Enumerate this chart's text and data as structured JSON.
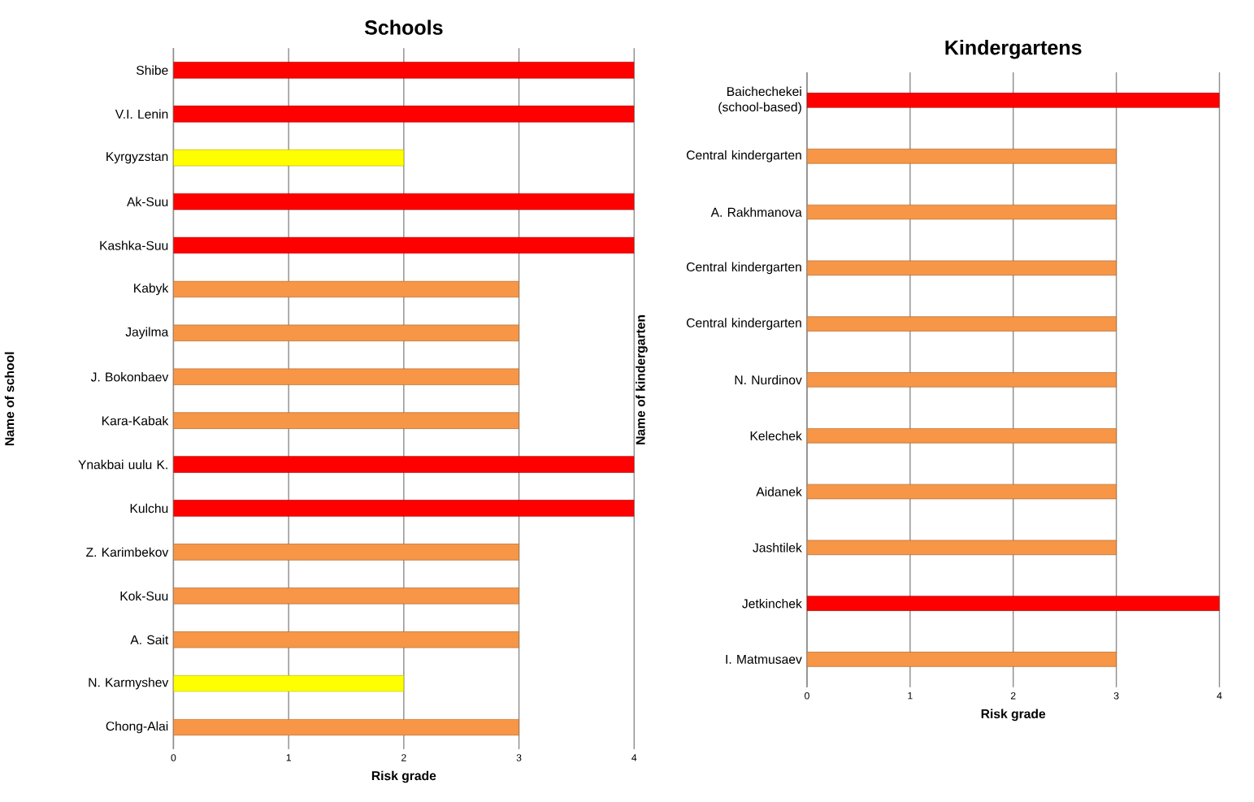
{
  "chart_data": [
    {
      "type": "bar",
      "orientation": "horizontal",
      "title": "Schools",
      "xlabel": "Risk grade",
      "ylabel": "Name of school",
      "categories": [
        "Shibe",
        "V.I. Lenin",
        "Kyrgyzstan",
        "Ak-Suu",
        "Kashka-Suu",
        "Kabyk",
        "Jayilma",
        "J. Bokonbaev",
        "Kara-Kabak",
        "Ynakbai uulu K.",
        "Kulchu",
        "Z. Karimbekov",
        "Kok-Suu",
        "A. Sait",
        "N. Karmyshev",
        "Chong-Alai"
      ],
      "values": [
        4,
        4,
        2,
        4,
        4,
        3,
        3,
        3,
        3,
        4,
        4,
        3,
        3,
        3,
        2,
        3
      ],
      "colors": [
        "#ff0000",
        "#ff0000",
        "#ffff00",
        "#ff0000",
        "#ff0000",
        "#f79646",
        "#f79646",
        "#f79646",
        "#f79646",
        "#ff0000",
        "#ff0000",
        "#f79646",
        "#f79646",
        "#f79646",
        "#ffff00",
        "#f79646"
      ],
      "xlim": [
        0,
        4
      ],
      "xticks": [
        0,
        1,
        2,
        3,
        4
      ],
      "grid": "x"
    },
    {
      "type": "bar",
      "orientation": "horizontal",
      "title": "Kindergartens",
      "xlabel": "Risk grade",
      "ylabel": "Name of kindergarten",
      "categories": [
        "Baichechekei (school-based)",
        "Central kindergarten",
        "A. Rakhmanova",
        "Central kindergarten",
        "Central kindergarten",
        "N. Nurdinov",
        "Kelechek",
        "Aidanek",
        "Jashtilek",
        "Jetkinchek",
        "I. Matmusaev"
      ],
      "values": [
        4,
        3,
        3,
        3,
        3,
        3,
        3,
        3,
        3,
        4,
        3
      ],
      "colors": [
        "#ff0000",
        "#f79646",
        "#f79646",
        "#f79646",
        "#f79646",
        "#f79646",
        "#f79646",
        "#f79646",
        "#f79646",
        "#ff0000",
        "#f79646"
      ],
      "xlim": [
        0,
        4
      ],
      "xticks": [
        0,
        1,
        2,
        3,
        4
      ],
      "grid": "x"
    }
  ]
}
